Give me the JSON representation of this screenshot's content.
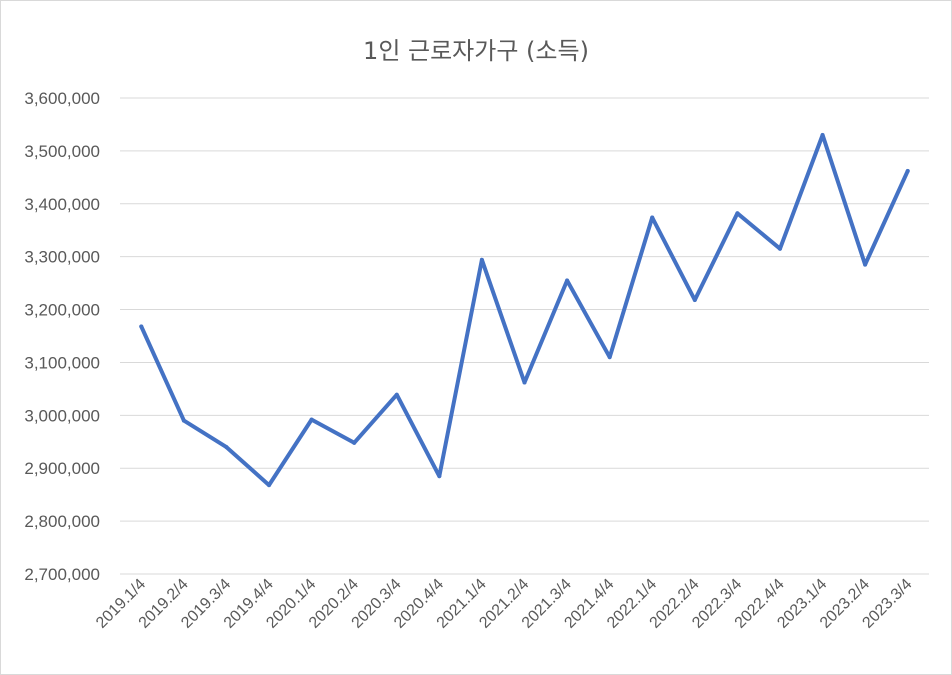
{
  "chart_data": {
    "type": "line",
    "title": "1인 근로자가구 (소득)",
    "xlabel": "",
    "ylabel": "",
    "ylim": [
      2700000,
      3600000
    ],
    "y_ticks": [
      "2,700,000",
      "2,800,000",
      "2,900,000",
      "3,000,000",
      "3,100,000",
      "3,200,000",
      "3,300,000",
      "3,400,000",
      "3,500,000",
      "3,600,000"
    ],
    "y_tick_values": [
      2700000,
      2800000,
      2900000,
      3000000,
      3100000,
      3200000,
      3300000,
      3400000,
      3500000,
      3600000
    ],
    "grid": true,
    "legend": "none",
    "categories": [
      "2019.1/4",
      "2019.2/4",
      "2019.3/4",
      "2019.4/4",
      "2020.1/4",
      "2020.2/4",
      "2020.3/4",
      "2020.4/4",
      "2021.1/4",
      "2021.2/4",
      "2021.3/4",
      "2021.4/4",
      "2022.1/4",
      "2022.2/4",
      "2022.3/4",
      "2022.4/4",
      "2023.1/4",
      "2023.2/4",
      "2023.3/4"
    ],
    "series": [
      {
        "color": "#4472c4",
        "values": [
          3168000,
          2990000,
          2940000,
          2868000,
          2992000,
          2948000,
          3039000,
          2885000,
          3294000,
          3062000,
          3255000,
          3110000,
          3374000,
          3218000,
          3382000,
          3315000,
          3530000,
          3285000,
          3462000
        ]
      }
    ]
  }
}
